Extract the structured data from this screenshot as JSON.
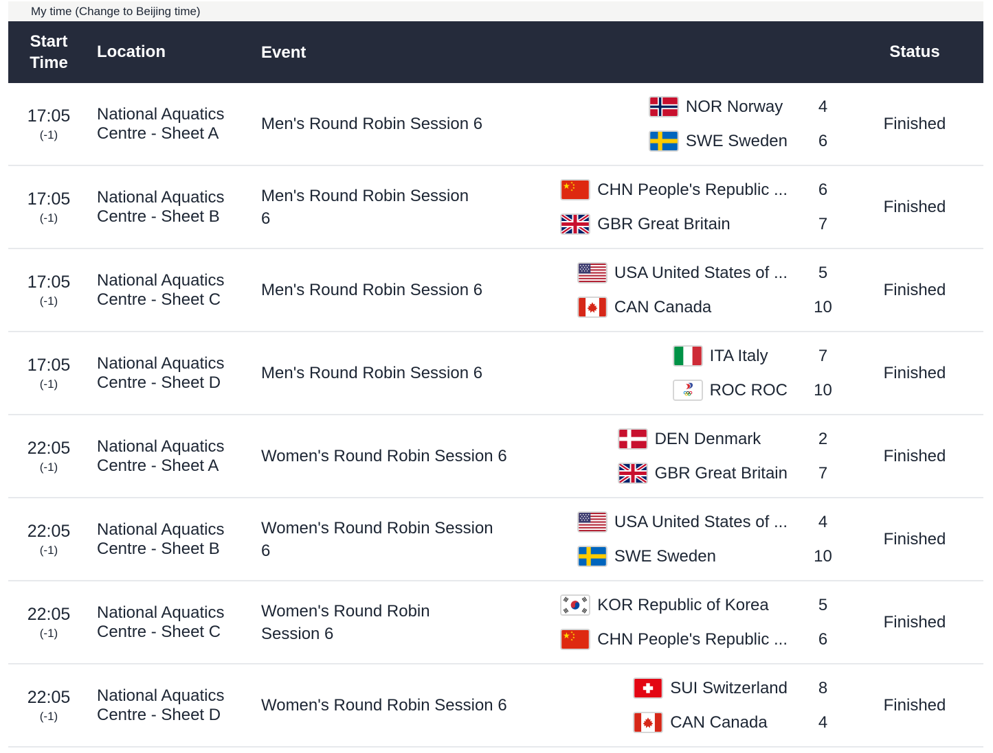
{
  "topbar": {
    "timezone_label": "My time (Change to Beijing time)"
  },
  "table": {
    "headers": {
      "start_time": "Start Time",
      "location": "Location",
      "event": "Event",
      "status": "Status"
    },
    "rows": [
      {
        "start_time": "17:05",
        "offset": "(-1)",
        "location": "National Aquatics Centre - Sheet A",
        "event": "Men's Round Robin Session 6",
        "teams": [
          {
            "flag": "nor",
            "name": "NOR Norway",
            "score": "4"
          },
          {
            "flag": "swe",
            "name": "SWE Sweden",
            "score": "6"
          }
        ],
        "status": "Finished"
      },
      {
        "start_time": "17:05",
        "offset": "(-1)",
        "location": "National Aquatics Centre - Sheet B",
        "event": "Men's Round Robin Session\n6",
        "teams": [
          {
            "flag": "chn",
            "name": "CHN People's Republic ...",
            "score": "6"
          },
          {
            "flag": "gbr",
            "name": "GBR Great Britain",
            "score": "7"
          }
        ],
        "status": "Finished"
      },
      {
        "start_time": "17:05",
        "offset": "(-1)",
        "location": "National Aquatics Centre - Sheet C",
        "event": "Men's Round Robin Session 6",
        "teams": [
          {
            "flag": "usa",
            "name": "USA United States of ...",
            "score": "5"
          },
          {
            "flag": "can",
            "name": "CAN Canada",
            "score": "10"
          }
        ],
        "status": "Finished"
      },
      {
        "start_time": "17:05",
        "offset": "(-1)",
        "location": "National Aquatics Centre - Sheet D",
        "event": "Men's Round Robin Session 6",
        "teams": [
          {
            "flag": "ita",
            "name": "ITA Italy",
            "score": "7"
          },
          {
            "flag": "roc",
            "name": "ROC ROC",
            "score": "10"
          }
        ],
        "status": "Finished"
      },
      {
        "start_time": "22:05",
        "offset": "(-1)",
        "location": "National Aquatics Centre - Sheet A",
        "event": "Women's Round Robin Session 6",
        "teams": [
          {
            "flag": "den",
            "name": "DEN Denmark",
            "score": "2"
          },
          {
            "flag": "gbr",
            "name": "GBR Great Britain",
            "score": "7"
          }
        ],
        "status": "Finished"
      },
      {
        "start_time": "22:05",
        "offset": "(-1)",
        "location": "National Aquatics Centre - Sheet B",
        "event": "Women's Round Robin Session\n6",
        "teams": [
          {
            "flag": "usa",
            "name": "USA United States of ...",
            "score": "4"
          },
          {
            "flag": "swe",
            "name": "SWE Sweden",
            "score": "10"
          }
        ],
        "status": "Finished"
      },
      {
        "start_time": "22:05",
        "offset": "(-1)",
        "location": "National Aquatics Centre - Sheet C",
        "event": "Women's Round Robin\nSession 6",
        "teams": [
          {
            "flag": "kor",
            "name": "KOR Republic of Korea",
            "score": "5"
          },
          {
            "flag": "chn",
            "name": "CHN People's Republic ...",
            "score": "6"
          }
        ],
        "status": "Finished"
      },
      {
        "start_time": "22:05",
        "offset": "(-1)",
        "location": "National Aquatics Centre - Sheet D",
        "event": "Women's Round Robin Session 6",
        "teams": [
          {
            "flag": "sui",
            "name": "SUI Switzerland",
            "score": "8"
          },
          {
            "flag": "can",
            "name": "CAN Canada",
            "score": "4"
          }
        ],
        "status": "Finished"
      }
    ]
  },
  "colors": {
    "header_bg": "#252B3B",
    "header_text": "#FFFFFF",
    "row_text": "#1C2533",
    "divider": "#E7E9EC",
    "topbar_bg": "#F5F5F4"
  }
}
